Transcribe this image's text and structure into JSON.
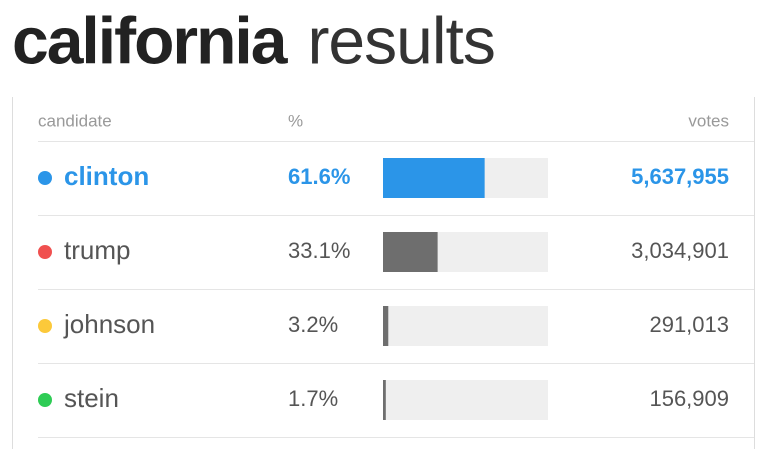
{
  "chart_data": {
    "type": "bar",
    "title": "california",
    "subtitle": "results",
    "headers": [
      "candidate",
      "%",
      "votes"
    ],
    "categories": [
      "clinton",
      "trump",
      "johnson",
      "stein"
    ],
    "dot_colors": [
      "#2b95e8",
      "#f0504f",
      "#fcc93a",
      "#2ecc55"
    ],
    "bar_colors": [
      "#2b95e8",
      "#6e6e6e",
      "#6e6e6e",
      "#6e6e6e"
    ],
    "highlight": 0,
    "highlight_color": "#2b95e8",
    "values": [
      61.6,
      33.1,
      3.2,
      1.7
    ],
    "value_labels": [
      "61.6%",
      "33.1%",
      "3.2%",
      "1.7%"
    ],
    "votes": [
      {
        "value": 5637955,
        "label": "5,637,955"
      },
      {
        "value": 3034901,
        "label": "3,034,901"
      },
      {
        "value": 291013,
        "label": "291,013"
      },
      {
        "value": 156909,
        "label": "156,909"
      }
    ],
    "xlim": [
      0,
      100
    ]
  }
}
